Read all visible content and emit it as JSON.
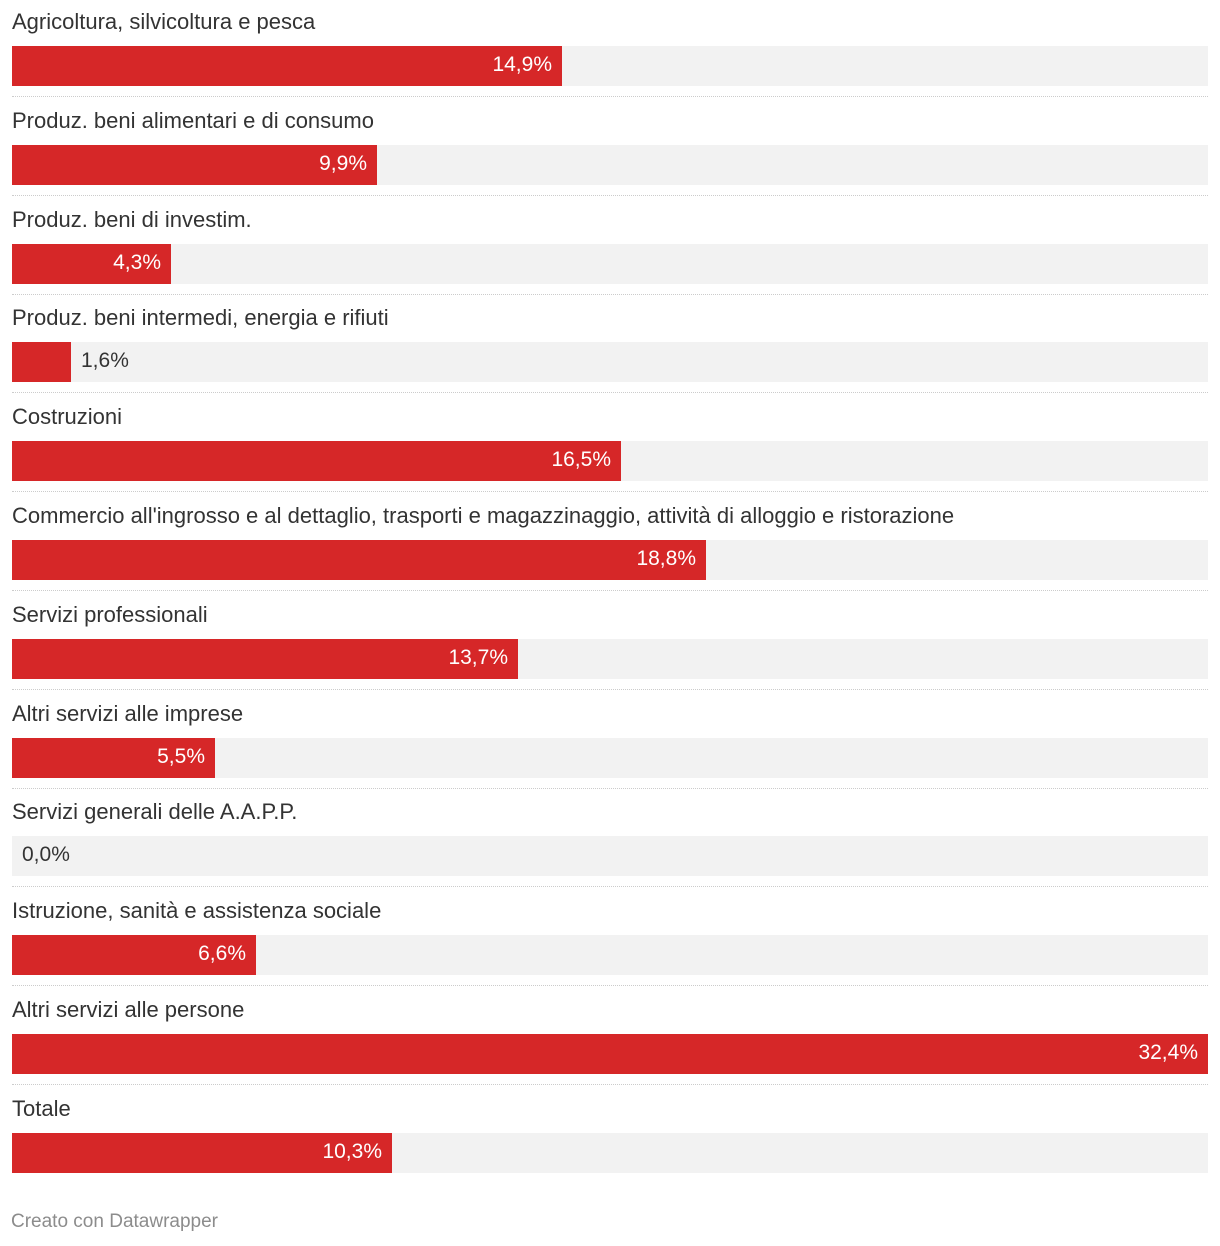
{
  "chart_data": {
    "type": "bar",
    "orientation": "horizontal",
    "categories": [
      "Agricoltura, silvicoltura e pesca",
      "Produz. beni alimentari e di consumo",
      "Produz. beni di investim.",
      "Produz. beni intermedi, energia e rifiuti",
      "Costruzioni",
      "Commercio all'ingrosso e al dettaglio, trasporti e magazzinaggio, attività di alloggio e ristorazione",
      "Servizi professionali",
      "Altri servizi alle imprese",
      "Servizi generali delle A.A.P.P.",
      "Istruzione, sanità e assistenza sociale",
      "Altri servizi alle persone",
      "Totale"
    ],
    "values": [
      14.9,
      9.9,
      4.3,
      1.6,
      16.5,
      18.8,
      13.7,
      5.5,
      0.0,
      6.6,
      32.4,
      10.3
    ],
    "value_labels": [
      "14,9%",
      "9,9%",
      "4,3%",
      "1,6%",
      "16,5%",
      "18,8%",
      "13,7%",
      "5,5%",
      "0,0%",
      "6,6%",
      "32,4%",
      "10,3%"
    ],
    "xlim": [
      0,
      32.4
    ],
    "bar_color": "#d62728",
    "track_color": "#f2f2f2",
    "grid": false,
    "title": "",
    "xlabel": "",
    "ylabel": ""
  },
  "footer": {
    "credit": "Creato con Datawrapper"
  }
}
